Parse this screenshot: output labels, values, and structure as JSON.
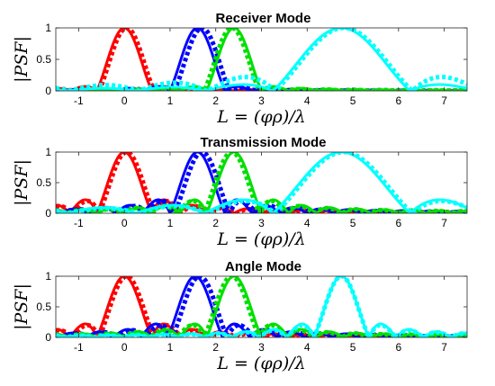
{
  "chart_data": [
    {
      "type": "line",
      "title": "Receiver Mode",
      "xlabel": "L = (φρ)/λ",
      "ylabel": "|PSF|",
      "xlim": [
        -1.5,
        7.5
      ],
      "ylim": [
        0,
        1
      ],
      "xticks": [
        -1,
        0,
        1,
        2,
        3,
        4,
        5,
        6,
        7
      ],
      "yticks": [
        0,
        0.5,
        1
      ],
      "grid": false,
      "series": [
        {
          "color": "#ff0000",
          "style": "solid",
          "center": 0,
          "width": 0.6,
          "sidelobe": 0.07
        },
        {
          "color": "#ff0000",
          "style": "dotted",
          "center": 0.05,
          "width": 0.6,
          "sidelobe": 0.05
        },
        {
          "color": "#0000ff",
          "style": "solid",
          "center": 1.6,
          "width": 0.6,
          "sidelobe": 0.07
        },
        {
          "color": "#0000ff",
          "style": "dotted",
          "center": 1.7,
          "width": 0.6,
          "sidelobe": 0.05
        },
        {
          "color": "#00e000",
          "style": "solid",
          "center": 2.4,
          "width": 0.6,
          "sidelobe": 0.07
        },
        {
          "color": "#00e000",
          "style": "dotted",
          "center": 2.35,
          "width": 0.6,
          "sidelobe": 0.05
        },
        {
          "color": "#00ffff",
          "style": "solid",
          "center": 4.75,
          "width": 1.5,
          "sidelobe": 0.1
        },
        {
          "color": "#00ffff",
          "style": "dotted",
          "center": 4.8,
          "width": 1.5,
          "sidelobe": 0.22
        }
      ]
    },
    {
      "type": "line",
      "title": "Transmission Mode",
      "xlabel": "L = (φρ)/λ",
      "ylabel": "|PSF|",
      "xlim": [
        -1.5,
        7.5
      ],
      "ylim": [
        0,
        1
      ],
      "xticks": [
        -1,
        0,
        1,
        2,
        3,
        4,
        5,
        6,
        7
      ],
      "yticks": [
        0,
        0.5,
        1
      ],
      "grid": false,
      "series": [
        {
          "color": "#ff0000",
          "style": "solid",
          "center": 0,
          "width": 0.6,
          "sidelobe": 0.22
        },
        {
          "color": "#ff0000",
          "style": "dotted",
          "center": 0.05,
          "width": 0.6,
          "sidelobe": 0.2
        },
        {
          "color": "#0000ff",
          "style": "solid",
          "center": 1.6,
          "width": 0.6,
          "sidelobe": 0.22
        },
        {
          "color": "#0000ff",
          "style": "dotted",
          "center": 1.7,
          "width": 0.6,
          "sidelobe": 0.2
        },
        {
          "color": "#00e000",
          "style": "solid",
          "center": 2.4,
          "width": 0.6,
          "sidelobe": 0.22
        },
        {
          "color": "#00e000",
          "style": "dotted",
          "center": 2.35,
          "width": 0.6,
          "sidelobe": 0.2
        },
        {
          "color": "#00ffff",
          "style": "solid",
          "center": 4.75,
          "width": 1.5,
          "sidelobe": 0.22
        },
        {
          "color": "#00ffff",
          "style": "dotted",
          "center": 4.8,
          "width": 1.5,
          "sidelobe": 0.2
        }
      ]
    },
    {
      "type": "line",
      "title": "Angle Mode",
      "xlabel": "L = (φρ)/λ",
      "ylabel": "|PSF|",
      "xlim": [
        -1.5,
        7.5
      ],
      "ylim": [
        0,
        1
      ],
      "xticks": [
        -1,
        0,
        1,
        2,
        3,
        4,
        5,
        6,
        7
      ],
      "yticks": [
        0,
        0.5,
        1
      ],
      "grid": false,
      "series": [
        {
          "color": "#ff0000",
          "style": "solid",
          "center": 0,
          "width": 0.6,
          "sidelobe": 0.22
        },
        {
          "color": "#ff0000",
          "style": "dotted",
          "center": 0.05,
          "width": 0.6,
          "sidelobe": 0.2
        },
        {
          "color": "#0000ff",
          "style": "solid",
          "center": 1.55,
          "width": 0.6,
          "sidelobe": 0.22
        },
        {
          "color": "#0000ff",
          "style": "dotted",
          "center": 1.65,
          "width": 0.6,
          "sidelobe": 0.2
        },
        {
          "color": "#00e000",
          "style": "solid",
          "center": 2.4,
          "width": 0.6,
          "sidelobe": 0.22
        },
        {
          "color": "#00e000",
          "style": "dotted",
          "center": 2.35,
          "width": 0.6,
          "sidelobe": 0.2
        },
        {
          "color": "#00ffff",
          "style": "solid",
          "center": 4.75,
          "width": 0.6,
          "sidelobe": 0.22
        },
        {
          "color": "#00ffff",
          "style": "dotted",
          "center": 4.75,
          "width": 0.6,
          "sidelobe": 0.2
        }
      ]
    }
  ]
}
